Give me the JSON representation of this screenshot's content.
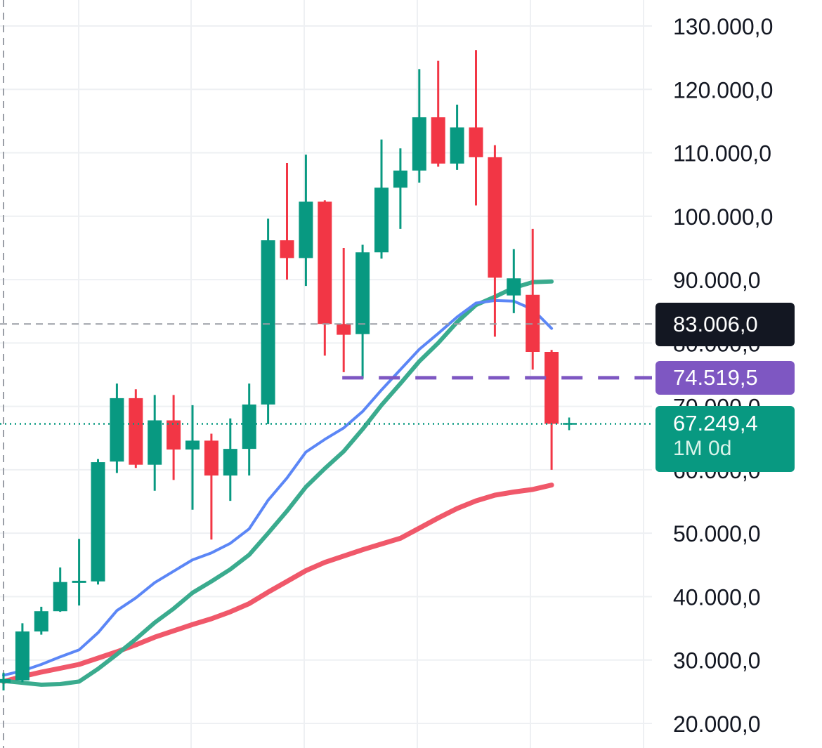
{
  "chart_data": {
    "type": "candlestick",
    "y_axis": {
      "position": "right",
      "ticks": [
        20000,
        30000,
        40000,
        50000,
        60000,
        70000,
        80000,
        90000,
        100000,
        110000,
        120000,
        130000
      ],
      "tick_labels": [
        "20.000,0",
        "30.000,0",
        "40.000,0",
        "50.000,0",
        "60.000,0",
        "70.000,0",
        "80.000,0",
        "90.000,0",
        "100.000,0",
        "110.000,0",
        "120.000,0",
        "130.000,0"
      ],
      "range": [
        16000,
        133500
      ]
    },
    "grid": true,
    "colors": {
      "up": "#089981",
      "down": "#f23645",
      "ma_fast": "#5b86f6",
      "ma_mid": "#3aab8e",
      "ma_slow": "#f0586a",
      "marker_line": "#7e57c2",
      "last_price_label": "#131722",
      "grid": "#eef0f3",
      "axis_text": "#131722"
    },
    "candles": [
      {
        "o": 26400,
        "h": 28000,
        "l": 25200,
        "c": 27000
      },
      {
        "o": 26800,
        "h": 35800,
        "l": 26500,
        "c": 34500
      },
      {
        "o": 34500,
        "h": 38400,
        "l": 34000,
        "c": 37700
      },
      {
        "o": 37700,
        "h": 44600,
        "l": 37600,
        "c": 42300
      },
      {
        "o": 42300,
        "h": 49100,
        "l": 38600,
        "c": 42500
      },
      {
        "o": 42400,
        "h": 61700,
        "l": 41900,
        "c": 61200
      },
      {
        "o": 61300,
        "h": 73600,
        "l": 59500,
        "c": 71300
      },
      {
        "o": 71300,
        "h": 72700,
        "l": 60300,
        "c": 60800
      },
      {
        "o": 60800,
        "h": 71800,
        "l": 56700,
        "c": 67800
      },
      {
        "o": 67800,
        "h": 71800,
        "l": 58400,
        "c": 63200
      },
      {
        "o": 63200,
        "h": 70200,
        "l": 53700,
        "c": 64600
      },
      {
        "o": 64600,
        "h": 65700,
        "l": 49000,
        "c": 59100
      },
      {
        "o": 59100,
        "h": 68100,
        "l": 55100,
        "c": 63300
      },
      {
        "o": 63300,
        "h": 73600,
        "l": 59100,
        "c": 70300
      },
      {
        "o": 70300,
        "h": 99600,
        "l": 67200,
        "c": 96200
      },
      {
        "o": 96200,
        "h": 108400,
        "l": 90000,
        "c": 93400
      },
      {
        "o": 93400,
        "h": 109700,
        "l": 89000,
        "c": 102300
      },
      {
        "o": 102300,
        "h": 102500,
        "l": 78000,
        "c": 83000
      },
      {
        "o": 83000,
        "h": 95000,
        "l": 75400,
        "c": 81300
      },
      {
        "o": 81400,
        "h": 95500,
        "l": 74400,
        "c": 94300
      },
      {
        "o": 94300,
        "h": 112100,
        "l": 93300,
        "c": 104500
      },
      {
        "o": 104500,
        "h": 110700,
        "l": 98000,
        "c": 107200
      },
      {
        "o": 107200,
        "h": 123200,
        "l": 105300,
        "c": 115600
      },
      {
        "o": 115600,
        "h": 124500,
        "l": 107800,
        "c": 108300
      },
      {
        "o": 108300,
        "h": 117600,
        "l": 107300,
        "c": 114000
      },
      {
        "o": 114000,
        "h": 126200,
        "l": 101700,
        "c": 109300
      },
      {
        "o": 109300,
        "h": 111200,
        "l": 81000,
        "c": 90300
      },
      {
        "o": 87500,
        "h": 94800,
        "l": 84700,
        "c": 90200
      },
      {
        "o": 87600,
        "h": 98000,
        "l": 75800,
        "c": 78600
      },
      {
        "o": 78600,
        "h": 78900,
        "l": 60000,
        "c": 67249.4
      }
    ],
    "moving_averages": [
      {
        "values": [
          27600,
          28300,
          29300,
          30500,
          31600,
          34300,
          37800,
          39800,
          42200,
          44000,
          45800,
          46900,
          48400,
          50700,
          55200,
          58700,
          62800,
          64800,
          66600,
          69200,
          72600,
          75800,
          79000,
          81500,
          84100,
          86300,
          86700,
          86600,
          85300,
          82300
        ]
      },
      {
        "values": [
          26700,
          26400,
          26100,
          26200,
          26600,
          28600,
          30900,
          33300,
          35900,
          38100,
          40600,
          42400,
          44300,
          46600,
          50000,
          53500,
          57300,
          60200,
          62900,
          66400,
          70200,
          73600,
          77100,
          80000,
          83300,
          86000,
          87300,
          88700,
          89600,
          89700
        ]
      },
      {
        "values": [
          26600,
          27400,
          28100,
          28700,
          29300,
          30300,
          31300,
          32400,
          33600,
          34600,
          35600,
          36500,
          37600,
          38900,
          40700,
          42400,
          44100,
          45400,
          46400,
          47400,
          48300,
          49200,
          50800,
          52400,
          53900,
          55100,
          56000,
          56500,
          56900,
          57600
        ]
      }
    ],
    "current_price": 67249.4,
    "last_price_line": 83006.0,
    "marked_level": {
      "value": 74519.5,
      "from_candle": 18,
      "extends_to_axis": true
    }
  },
  "labels": {
    "last_price": "83.006,0",
    "marked_level": "74.519,5",
    "current_price": "67.249,4",
    "countdown": "1M 0d"
  }
}
